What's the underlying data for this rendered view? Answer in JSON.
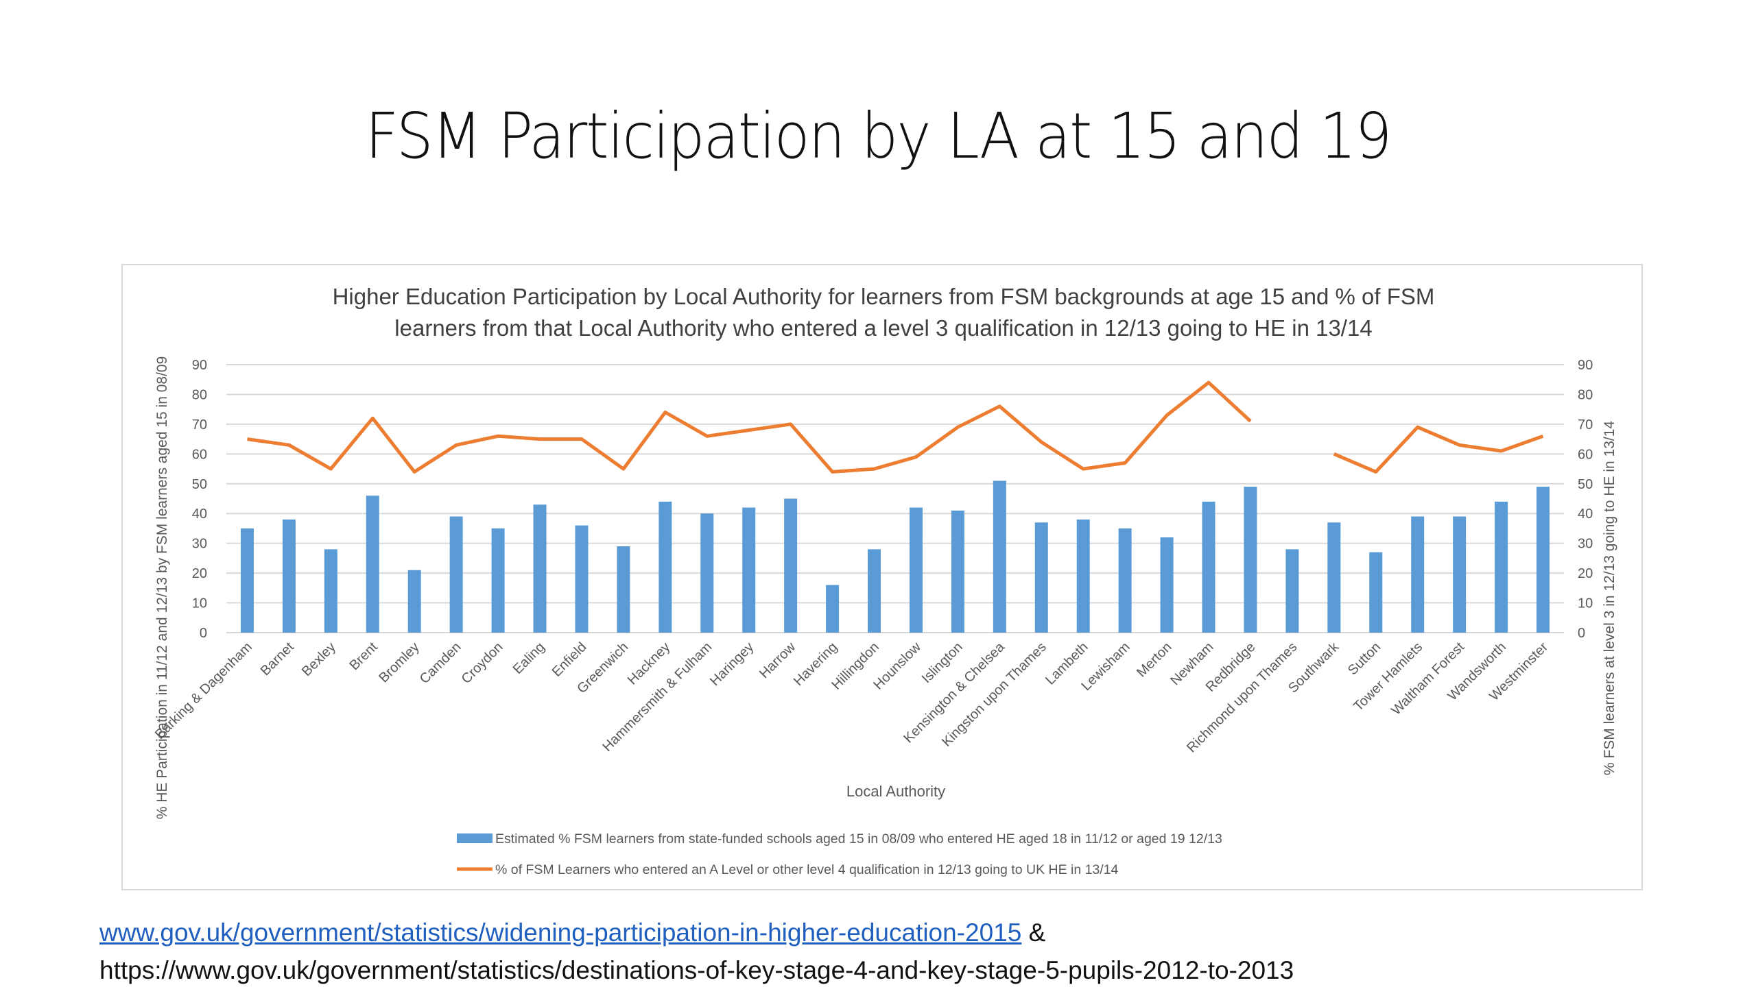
{
  "slide": {
    "title": "FSM Participation by LA at 15 and 19"
  },
  "footer": {
    "link1": "www.gov.uk/government/statistics/widening-participation-in-higher-education-2015",
    "connector": " &",
    "link2": "https://www.gov.uk/government/statistics/destinations-of-key-stage-4-and-key-stage-5-pupils-2012-to-2013"
  },
  "colors": {
    "bar": "#5B9BD5",
    "line": "#ED7D31",
    "grid": "#D9D9D9",
    "axis_text": "#595959",
    "link": "#1F5FBF"
  },
  "chart_data": {
    "type": "bar",
    "combo": "bar+line (dual axis)",
    "title_lines": [
      "Higher Education Participation by Local Authority for learners from FSM backgrounds at age 15 and % of FSM",
      "learners from that Local Authority who entered a level 3 qualification in 12/13 going to HE in 13/14"
    ],
    "xlabel": "Local Authority",
    "ylabel": "% HE Participation in 11/12 and 12/13 by FSM learners aged 15 in 08/09",
    "ylabel_right": "% FSM learners at level 3 in 12/13 going to HE in 13/14",
    "ylim": [
      0,
      90
    ],
    "ylim_right": [
      0,
      90
    ],
    "yticks": [
      "0",
      "10",
      "20",
      "30",
      "40",
      "50",
      "60",
      "70",
      "80",
      "90"
    ],
    "grid": true,
    "legend_position": "bottom",
    "categories": [
      "Barking & Dagenham",
      "Barnet",
      "Bexley",
      "Brent",
      "Bromley",
      "Camden",
      "Croydon",
      "Ealing",
      "Enfield",
      "Greenwich",
      "Hackney",
      "Hammersmith & Fulham",
      "Haringey",
      "Harrow",
      "Havering",
      "Hillingdon",
      "Hounslow",
      "Islington",
      "Kensington & Chelsea",
      "Kingston upon Thames",
      "Lambeth",
      "Lewisham",
      "Merton",
      "Newham",
      "Redbridge",
      "Richmond upon Thames",
      "Southwark",
      "Sutton",
      "Tower Hamlets",
      "Waltham Forest",
      "Wandsworth",
      "Westminster"
    ],
    "series": [
      {
        "name": "Estimated % FSM learners from state-funded schools aged 15 in 08/09 who entered HE aged 18 in 11/12 or aged 19 12/13",
        "type": "bar",
        "axis": "left",
        "values": [
          35,
          38,
          28,
          46,
          21,
          39,
          35,
          43,
          36,
          29,
          44,
          40,
          42,
          45,
          16,
          28,
          42,
          41,
          51,
          37,
          38,
          35,
          32,
          44,
          49,
          28,
          37,
          27,
          39,
          39,
          44,
          49
        ]
      },
      {
        "name": "% of FSM Learners who entered an A Level or other level 4 qualification in 12/13 going to UK HE in 13/14",
        "type": "line",
        "axis": "right",
        "values": [
          65,
          63,
          55,
          72,
          54,
          63,
          66,
          65,
          65,
          55,
          74,
          66,
          68,
          70,
          54,
          55,
          59,
          69,
          76,
          64,
          55,
          57,
          73,
          84,
          71,
          null,
          60,
          54,
          69,
          63,
          61,
          66
        ]
      }
    ]
  }
}
